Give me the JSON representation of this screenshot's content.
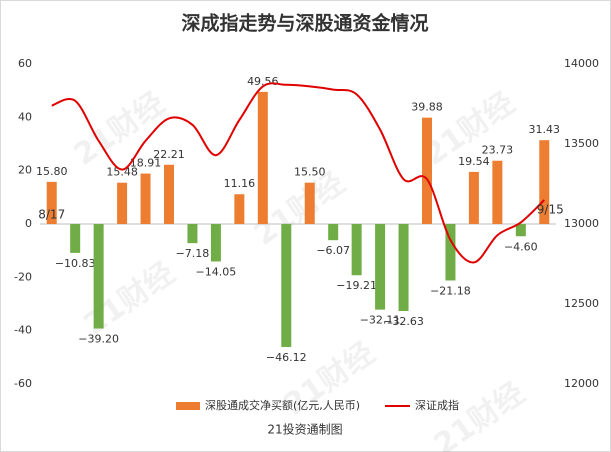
{
  "chart_data": {
    "type": "bar-line",
    "title": "深成指走势与深股通资金情况",
    "footer": "21投资通制图",
    "watermark": "21财经",
    "categories": [
      "8/17",
      null,
      null,
      null,
      null,
      null,
      null,
      null,
      null,
      null,
      null,
      null,
      null,
      null,
      null,
      null,
      null,
      null,
      null,
      null,
      null,
      "9/15"
    ],
    "series": [
      {
        "name": "深股通成交净买额(亿元,人民币)",
        "type": "bar",
        "color": "#ed7d31",
        "negative_color": "#70ad47",
        "values": [
          15.8,
          -10.83,
          -39.2,
          15.48,
          18.91,
          22.21,
          -7.18,
          -14.05,
          11.16,
          49.56,
          -46.12,
          15.5,
          -6.07,
          -19.21,
          -32.11,
          -32.63,
          39.88,
          -21.18,
          19.54,
          23.73,
          -4.6,
          31.43
        ],
        "value_labels": [
          "15.80",
          "−10.83",
          "−39.20",
          "15.48",
          "18.91",
          "22.21",
          "−7.18",
          "−14.05",
          "11.16",
          "49.56",
          "−46.12",
          "15.50",
          "−6.07",
          "−19.21",
          "−32.11",
          "−32.63",
          "39.88",
          "−21.18",
          "19.54",
          "23.73",
          "−4.60",
          "31.43"
        ]
      },
      {
        "name": "深证成指",
        "type": "line",
        "axis": "y2",
        "color": "#e00000",
        "values": [
          13740,
          13770,
          13520,
          13340,
          13520,
          13660,
          13620,
          13430,
          13650,
          13860,
          13870,
          13860,
          13840,
          13810,
          13590,
          13280,
          13280,
          12900,
          12760,
          12930,
          13010,
          13150
        ]
      }
    ],
    "ylim": [
      -60,
      60
    ],
    "yticks": [
      60,
      40,
      20,
      0,
      -20,
      -40,
      -60
    ],
    "y2lim": [
      12000,
      14000
    ],
    "y2ticks": [
      14000,
      13500,
      13000,
      12500,
      12000
    ],
    "legend": "bottom"
  }
}
